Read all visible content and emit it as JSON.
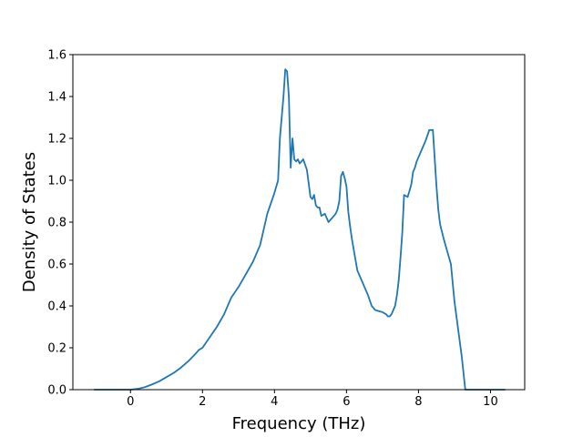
{
  "chart_data": {
    "type": "line",
    "title": "",
    "xlabel": "Frequency (THz)",
    "ylabel": "Density of States",
    "xlim": [
      -1.6,
      10.95
    ],
    "ylim": [
      0.0,
      1.6
    ],
    "grid": false,
    "legend": "none",
    "xticks": [
      0,
      2,
      4,
      6,
      8,
      10
    ],
    "xtick_labels": [
      "0",
      "2",
      "4",
      "6",
      "8",
      "10"
    ],
    "yticks": [
      0.0,
      0.2,
      0.4,
      0.6,
      0.8,
      1.0,
      1.2,
      1.4,
      1.6
    ],
    "ytick_labels": [
      "0.0",
      "0.2",
      "0.4",
      "0.6",
      "0.8",
      "1.0",
      "1.2",
      "1.4",
      "1.6"
    ],
    "line_color": "#1f77b4",
    "series": [
      {
        "x": [
          -1.0,
          -0.5,
          0.0,
          0.2,
          0.4,
          0.6,
          0.8,
          1.0,
          1.2,
          1.4,
          1.6,
          1.8,
          1.9,
          2.0,
          2.2,
          2.4,
          2.6,
          2.7,
          2.8,
          3.0,
          3.1,
          3.2,
          3.4,
          3.5,
          3.6,
          3.8,
          4.0,
          4.1,
          4.15,
          4.2,
          4.25,
          4.3,
          4.35,
          4.4,
          4.45,
          4.5,
          4.55,
          4.6,
          4.65,
          4.7,
          4.8,
          4.9,
          5.0,
          5.05,
          5.1,
          5.15,
          5.2,
          5.25,
          5.3,
          5.4,
          5.5,
          5.6,
          5.7,
          5.75,
          5.8,
          5.85,
          5.9,
          5.95,
          6.0,
          6.05,
          6.1,
          6.15,
          6.2,
          6.25,
          6.3,
          6.4,
          6.5,
          6.6,
          6.7,
          6.8,
          7.0,
          7.1,
          7.15,
          7.2,
          7.25,
          7.3,
          7.35,
          7.4,
          7.45,
          7.5,
          7.55,
          7.6,
          7.7,
          7.8,
          7.85,
          7.9,
          7.95,
          8.0,
          8.05,
          8.1,
          8.2,
          8.3,
          8.4,
          8.5,
          8.55,
          8.6,
          8.7,
          8.8,
          8.9,
          9.0,
          9.1,
          9.2,
          9.3,
          9.4,
          9.45,
          9.5,
          9.8,
          10.4
        ],
        "values": [
          0.0,
          0.0,
          0.0,
          0.004,
          0.012,
          0.025,
          0.04,
          0.06,
          0.08,
          0.105,
          0.135,
          0.17,
          0.19,
          0.2,
          0.25,
          0.3,
          0.36,
          0.4,
          0.44,
          0.49,
          0.52,
          0.55,
          0.61,
          0.65,
          0.69,
          0.84,
          0.94,
          1.0,
          1.2,
          1.3,
          1.4,
          1.53,
          1.52,
          1.4,
          1.06,
          1.2,
          1.1,
          1.09,
          1.1,
          1.08,
          1.1,
          1.05,
          0.92,
          0.91,
          0.93,
          0.88,
          0.87,
          0.87,
          0.83,
          0.84,
          0.8,
          0.82,
          0.84,
          0.86,
          0.9,
          1.02,
          1.04,
          1.01,
          0.97,
          0.85,
          0.78,
          0.72,
          0.67,
          0.62,
          0.57,
          0.53,
          0.49,
          0.45,
          0.4,
          0.38,
          0.37,
          0.36,
          0.35,
          0.35,
          0.36,
          0.38,
          0.4,
          0.45,
          0.52,
          0.63,
          0.75,
          0.93,
          0.92,
          0.98,
          1.04,
          1.06,
          1.09,
          1.11,
          1.13,
          1.15,
          1.19,
          1.24,
          1.24,
          0.97,
          0.86,
          0.79,
          0.72,
          0.66,
          0.6,
          0.42,
          0.29,
          0.16,
          0.0,
          0.0,
          0.0,
          0.0,
          0.0,
          0.0
        ]
      }
    ]
  }
}
